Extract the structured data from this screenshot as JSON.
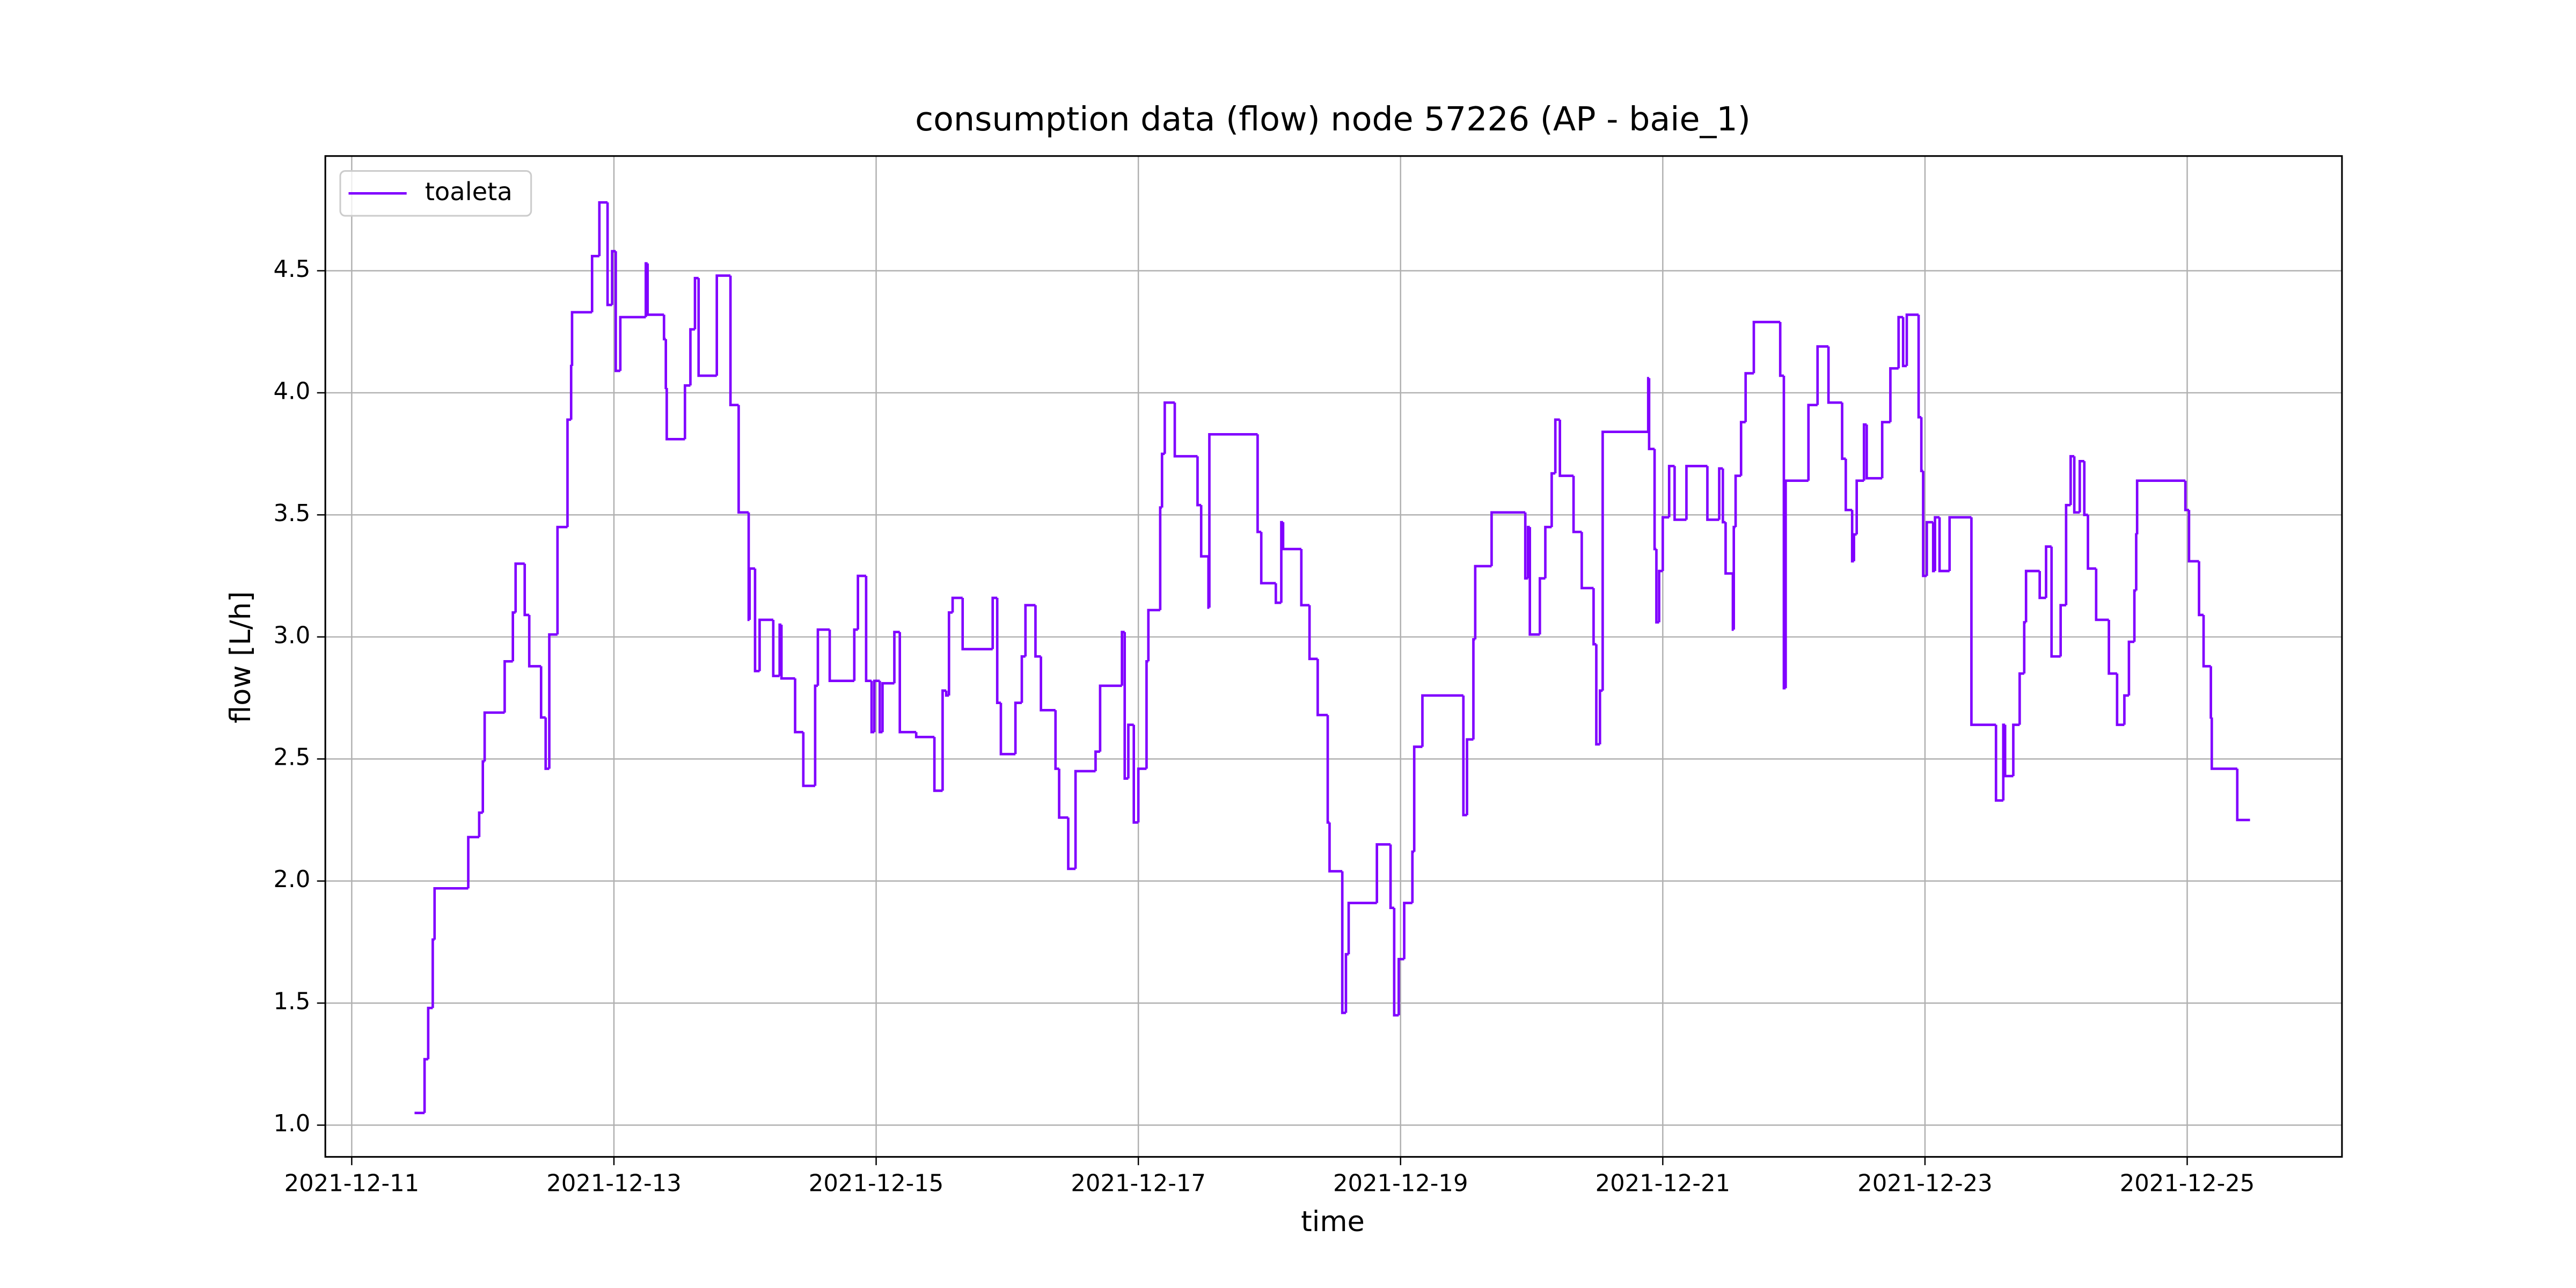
{
  "chart_data": {
    "type": "step",
    "title": "consumption data (flow) node 57226 (AP - baie_1)",
    "x_label": "time",
    "y_label": "flow [L/h]",
    "grid": true,
    "legend": "upper left",
    "xlim": [
      "2021-12-10 19:10",
      "2021-12-26 04:20"
    ],
    "xticks": [
      "2021-12-11",
      "2021-12-13",
      "2021-12-15",
      "2021-12-17",
      "2021-12-19",
      "2021-12-21",
      "2021-12-23",
      "2021-12-25"
    ],
    "ylim": [
      0.87,
      4.97
    ],
    "yticks": [
      {
        "value": 1,
        "label": "1.0"
      },
      1.5,
      {
        "value": 2,
        "label": "2.0"
      },
      2.5,
      {
        "value": 3,
        "label": "3.0"
      },
      3.5,
      {
        "value": 4,
        "label": "4.0"
      },
      4.5
    ],
    "series": [
      {
        "name": "toaleta",
        "color": "#8000ff",
        "x": [
          "2021-12-11 11:30",
          "2021-12-11 13:20",
          "2021-12-11 14:00",
          "2021-12-11 14:50",
          "2021-12-11 15:10",
          "2021-12-11 21:20",
          "2021-12-11 23:20",
          "2021-12-12 00:00",
          "2021-12-12 00:20",
          "2021-12-12 04:00",
          "2021-12-12 05:30",
          "2021-12-12 06:00",
          "2021-12-12 07:40",
          "2021-12-12 08:30",
          "2021-12-12 10:40",
          "2021-12-12 11:30",
          "2021-12-12 12:10",
          "2021-12-12 13:40",
          "2021-12-12 15:30",
          "2021-12-12 16:10",
          "2021-12-12 16:20",
          "2021-12-12 20:00",
          "2021-12-12 21:20",
          "2021-12-12 22:50",
          "2021-12-12 23:40",
          "2021-12-13 00:20",
          "2021-12-13 01:10",
          "2021-12-13 05:50",
          "2021-12-13 06:10",
          "2021-12-13 09:10",
          "2021-12-13 09:30",
          "2021-12-13 09:40",
          "2021-12-13 13:00",
          "2021-12-13 14:00",
          "2021-12-13 14:50",
          "2021-12-13 15:30",
          "2021-12-13 18:50",
          "2021-12-13 21:20",
          "2021-12-13 22:50",
          "2021-12-14 00:40",
          "2021-12-14 00:50",
          "2021-12-14 01:50",
          "2021-12-14 02:40",
          "2021-12-14 05:10",
          "2021-12-14 06:20",
          "2021-12-14 06:40",
          "2021-12-14 09:10",
          "2021-12-14 10:40",
          "2021-12-14 12:50",
          "2021-12-14 13:20",
          "2021-12-14 15:30",
          "2021-12-14 20:00",
          "2021-12-14 20:40",
          "2021-12-14 22:10",
          "2021-12-14 23:10",
          "2021-12-14 23:40",
          "2021-12-15 00:40",
          "2021-12-15 01:10",
          "2021-12-15 03:20",
          "2021-12-15 04:20",
          "2021-12-15 07:20",
          "2021-12-15 10:40",
          "2021-12-15 12:10",
          "2021-12-15 12:50",
          "2021-12-15 13:20",
          "2021-12-15 14:00",
          "2021-12-15 15:50",
          "2021-12-15 21:20",
          "2021-12-15 22:10",
          "2021-12-15 22:50",
          "2021-12-16 01:30",
          "2021-12-16 02:40",
          "2021-12-16 03:20",
          "2021-12-16 05:10",
          "2021-12-16 06:10",
          "2021-12-16 08:50",
          "2021-12-16 09:30",
          "2021-12-16 11:10",
          "2021-12-16 12:30",
          "2021-12-16 16:10",
          "2021-12-16 17:00",
          "2021-12-16 21:00",
          "2021-12-16 21:30",
          "2021-12-16 22:10",
          "2021-12-16 23:10",
          "2021-12-17 00:00",
          "2021-12-17 01:30",
          "2021-12-17 01:50",
          "2021-12-17 04:00",
          "2021-12-17 04:20",
          "2021-12-17 04:50",
          "2021-12-17 06:40",
          "2021-12-17 10:50",
          "2021-12-17 11:30",
          "2021-12-17 12:50",
          "2021-12-17 13:00",
          "2021-12-17 21:50",
          "2021-12-17 22:30",
          "2021-12-18 01:10",
          "2021-12-18 02:10",
          "2021-12-18 02:30",
          "2021-12-18 05:50",
          "2021-12-18 07:20",
          "2021-12-18 08:50",
          "2021-12-18 10:40",
          "2021-12-18 11:00",
          "2021-12-18 13:20",
          "2021-12-18 14:00",
          "2021-12-18 14:30",
          "2021-12-18 19:40",
          "2021-12-18 22:10",
          "2021-12-18 22:50",
          "2021-12-18 23:40",
          "2021-12-19 00:40",
          "2021-12-19 02:10",
          "2021-12-19 02:30",
          "2021-12-19 04:00",
          "2021-12-19 11:30",
          "2021-12-19 12:10",
          "2021-12-19 13:20",
          "2021-12-19 13:40",
          "2021-12-19 16:40",
          "2021-12-19 22:50",
          "2021-12-19 23:20",
          "2021-12-19 23:40",
          "2021-12-20 01:30",
          "2021-12-20 02:30",
          "2021-12-20 03:40",
          "2021-12-20 04:20",
          "2021-12-20 05:10",
          "2021-12-20 07:40",
          "2021-12-20 09:10",
          "2021-12-20 11:20",
          "2021-12-20 11:50",
          "2021-12-20 12:30",
          "2021-12-20 13:00",
          "2021-12-20 21:20",
          "2021-12-20 21:30",
          "2021-12-20 22:30",
          "2021-12-20 22:50",
          "2021-12-20 23:20",
          "2021-12-21 00:00",
          "2021-12-21 01:10",
          "2021-12-21 02:10",
          "2021-12-21 04:20",
          "2021-12-21 08:10",
          "2021-12-21 10:20",
          "2021-12-21 11:00",
          "2021-12-21 11:30",
          "2021-12-21 12:50",
          "2021-12-21 13:00",
          "2021-12-21 13:20",
          "2021-12-21 14:20",
          "2021-12-21 15:10",
          "2021-12-21 16:40",
          "2021-12-21 21:30",
          "2021-12-21 22:10",
          "2021-12-21 22:30",
          "2021-12-22 02:40",
          "2021-12-22 04:20",
          "2021-12-22 06:20",
          "2021-12-22 08:50",
          "2021-12-22 09:30",
          "2021-12-22 10:40",
          "2021-12-22 11:00",
          "2021-12-22 11:30",
          "2021-12-22 12:50",
          "2021-12-22 13:20",
          "2021-12-22 16:10",
          "2021-12-22 17:40",
          "2021-12-22 19:10",
          "2021-12-22 20:00",
          "2021-12-22 20:40",
          "2021-12-22 22:50",
          "2021-12-22 23:20",
          "2021-12-22 23:40",
          "2021-12-23 00:20",
          "2021-12-23 01:30",
          "2021-12-23 01:50",
          "2021-12-23 02:40",
          "2021-12-23 04:30",
          "2021-12-23 08:30",
          "2021-12-23 13:00",
          "2021-12-23 14:20",
          "2021-12-23 14:40",
          "2021-12-23 16:10",
          "2021-12-23 17:20",
          "2021-12-23 18:10",
          "2021-12-23 18:30",
          "2021-12-23 21:00",
          "2021-12-23 22:10",
          "2021-12-23 23:10",
          "2021-12-24 00:50",
          "2021-12-24 01:50",
          "2021-12-24 02:40",
          "2021-12-24 03:20",
          "2021-12-24 04:20",
          "2021-12-24 05:10",
          "2021-12-24 05:50",
          "2021-12-24 07:20",
          "2021-12-24 09:40",
          "2021-12-24 11:10",
          "2021-12-24 12:30",
          "2021-12-24 13:20",
          "2021-12-24 14:20",
          "2021-12-24 14:40",
          "2021-12-24 14:50",
          "2021-12-24 23:40",
          "2021-12-25 00:20",
          "2021-12-25 02:10",
          "2021-12-25 03:00",
          "2021-12-25 04:20",
          "2021-12-25 04:30",
          "2021-12-25 09:10",
          "2021-12-25 11:30"
        ],
        "values": [
          1.05,
          1.27,
          1.48,
          1.76,
          1.97,
          2.18,
          2.28,
          2.49,
          2.69,
          2.9,
          3.1,
          3.3,
          3.09,
          2.88,
          2.67,
          2.46,
          3.01,
          3.45,
          3.89,
          4.11,
          4.33,
          4.56,
          4.78,
          4.36,
          4.58,
          4.09,
          4.31,
          4.53,
          4.32,
          4.22,
          4.02,
          3.81,
          4.03,
          4.26,
          4.47,
          4.07,
          4.48,
          3.95,
          3.51,
          3.07,
          3.28,
          2.86,
          3.07,
          2.84,
          3.05,
          2.83,
          2.61,
          2.39,
          2.8,
          3.03,
          2.82,
          3.03,
          3.25,
          2.82,
          2.61,
          2.82,
          2.61,
          2.81,
          3.02,
          2.61,
          2.59,
          2.37,
          2.78,
          2.76,
          3.1,
          3.16,
          2.95,
          3.16,
          2.73,
          2.52,
          2.73,
          2.92,
          3.13,
          2.92,
          2.7,
          2.46,
          2.26,
          2.05,
          2.45,
          2.53,
          2.8,
          3.02,
          2.42,
          2.64,
          2.24,
          2.46,
          2.9,
          3.11,
          3.53,
          3.75,
          3.96,
          3.74,
          3.54,
          3.33,
          3.12,
          3.83,
          3.43,
          3.22,
          3.14,
          3.47,
          3.36,
          3.13,
          2.91,
          2.68,
          2.24,
          2.04,
          1.46,
          1.7,
          1.91,
          2.15,
          1.89,
          1.45,
          1.68,
          1.91,
          2.12,
          2.55,
          2.76,
          2.27,
          2.58,
          2.99,
          3.29,
          3.51,
          3.24,
          3.45,
          3.01,
          3.24,
          3.45,
          3.67,
          3.89,
          3.66,
          3.43,
          3.2,
          2.97,
          2.56,
          2.78,
          3.84,
          4.06,
          3.77,
          3.36,
          3.06,
          3.27,
          3.49,
          3.7,
          3.48,
          3.7,
          3.48,
          3.69,
          3.47,
          3.26,
          3.03,
          3.45,
          3.66,
          3.88,
          4.08,
          4.29,
          4.07,
          2.79,
          3.64,
          3.95,
          4.19,
          3.96,
          3.73,
          3.52,
          3.31,
          3.42,
          3.64,
          3.87,
          3.65,
          3.88,
          4.1,
          4.31,
          4.11,
          4.32,
          3.9,
          3.68,
          3.25,
          3.47,
          3.27,
          3.49,
          3.27,
          3.49,
          2.64,
          2.33,
          2.64,
          2.43,
          2.64,
          2.85,
          3.06,
          3.27,
          3.16,
          3.37,
          2.92,
          3.13,
          3.54,
          3.74,
          3.51,
          3.72,
          3.5,
          3.28,
          3.07,
          2.85,
          2.64,
          2.76,
          2.98,
          3.19,
          3.42,
          3.64,
          3.52,
          3.31,
          3.09,
          2.88,
          2.67,
          2.46,
          2.25,
          2.25
        ]
      }
    ]
  }
}
